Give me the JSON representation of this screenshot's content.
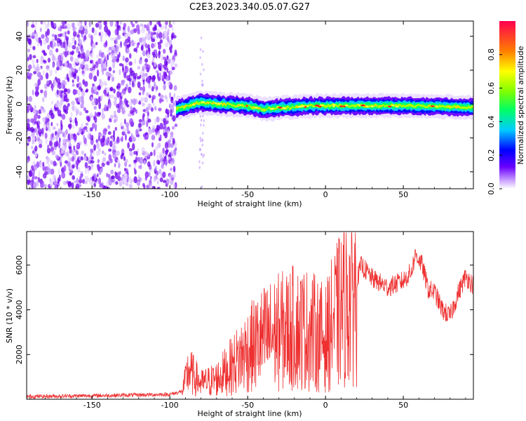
{
  "title": "C2E3.2023.340.05.07.G27",
  "chart_data": [
    {
      "type": "heatmap",
      "name": "spectrogram",
      "xlabel": "Height of straight line (km)",
      "ylabel": "Frequency (Hz)",
      "xlim": [
        -192,
        95
      ],
      "ylim": [
        -50,
        49
      ],
      "xticks": [
        -150,
        -100,
        -50,
        0,
        50
      ],
      "yticks": [
        -40,
        -20,
        0,
        20,
        40
      ],
      "noise_region_x": [
        -192,
        -96
      ],
      "signal_region_x": [
        -96,
        95
      ],
      "signal_center_freq": [
        {
          "x": -96,
          "y": -3
        },
        {
          "x": -80,
          "y": 1
        },
        {
          "x": -70,
          "y": 0
        },
        {
          "x": -50,
          "y": -1
        },
        {
          "x": -40,
          "y": -3
        },
        {
          "x": -25,
          "y": -2
        },
        {
          "x": -10,
          "y": -1
        },
        {
          "x": 0,
          "y": -1
        },
        {
          "x": 20,
          "y": -1
        },
        {
          "x": 50,
          "y": -1
        },
        {
          "x": 95,
          "y": -2
        }
      ],
      "colorbar": {
        "label": "Normalized spectral amplitude",
        "ticks": [
          "0.0",
          "0.2",
          "0.4",
          "0.6",
          "0.8"
        ],
        "range": [
          0,
          1
        ]
      }
    },
    {
      "type": "line",
      "name": "snr",
      "xlabel": "Height of straight line (km)",
      "ylabel": "SNR (10 * v/v)",
      "xlim": [
        -192,
        95
      ],
      "ylim": [
        0,
        7500
      ],
      "xticks": [
        -150,
        -100,
        -50,
        0,
        50
      ],
      "yticks": [
        2000,
        4000,
        6000
      ],
      "color": "#ee3030",
      "series": [
        {
          "name": "SNR",
          "x": [
            -192,
            -160,
            -130,
            -100,
            -92,
            -88,
            -80,
            -70,
            -60,
            -50,
            -40,
            -30,
            -20,
            -10,
            0,
            5,
            10,
            15,
            20,
            23,
            30,
            40,
            50,
            55,
            58,
            62,
            66,
            70,
            75,
            80,
            85,
            90,
            95
          ],
          "y": [
            120,
            150,
            180,
            220,
            350,
            1300,
            700,
            900,
            1500,
            2200,
            2700,
            3000,
            3200,
            3100,
            2700,
            3500,
            4000,
            4500,
            5300,
            6000,
            5400,
            5000,
            5300,
            5700,
            6500,
            6000,
            4900,
            4800,
            4000,
            3700,
            4700,
            5500,
            5100
          ]
        }
      ]
    }
  ]
}
